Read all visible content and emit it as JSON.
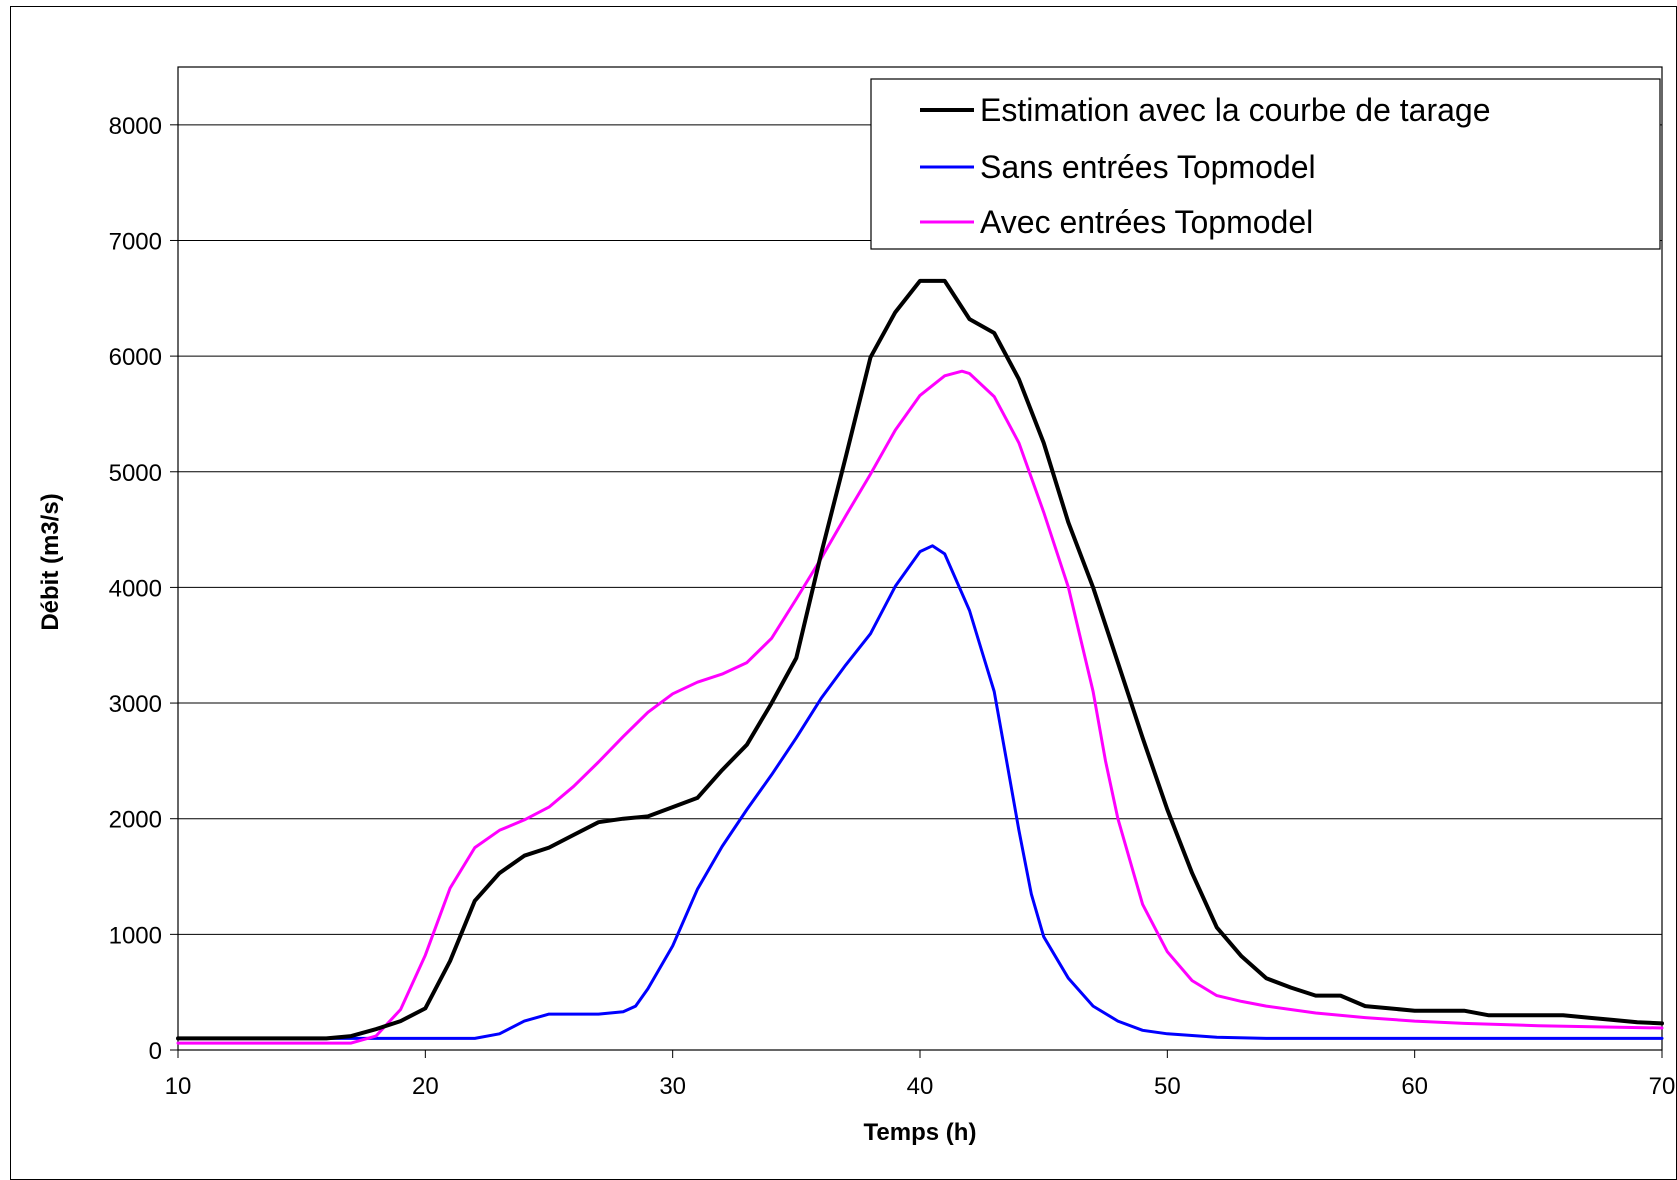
{
  "chart_data": {
    "type": "line",
    "title": "",
    "xlabel": "Temps (h)",
    "ylabel": "Débit (m3/s)",
    "xlim": [
      10,
      70
    ],
    "ylim": [
      0,
      8500
    ],
    "x_ticks": [
      10,
      20,
      30,
      40,
      50,
      60,
      70
    ],
    "y_ticks": [
      0,
      1000,
      2000,
      3000,
      4000,
      5000,
      6000,
      7000,
      8000
    ],
    "grid": "horizontal",
    "legend_position": "top-right",
    "series": [
      {
        "name": "Estimation avec la courbe de tarage",
        "color": "#000000",
        "points": [
          [
            10,
            100
          ],
          [
            14,
            100
          ],
          [
            16,
            100
          ],
          [
            17,
            120
          ],
          [
            18,
            180
          ],
          [
            19,
            250
          ],
          [
            20,
            360
          ],
          [
            21,
            770
          ],
          [
            22,
            1290
          ],
          [
            23,
            1530
          ],
          [
            24,
            1680
          ],
          [
            25,
            1750
          ],
          [
            26,
            1860
          ],
          [
            27,
            1970
          ],
          [
            28,
            2000
          ],
          [
            29,
            2020
          ],
          [
            30,
            2100
          ],
          [
            31,
            2180
          ],
          [
            32,
            2420
          ],
          [
            33,
            2640
          ],
          [
            34,
            3000
          ],
          [
            35,
            3390
          ],
          [
            36,
            4290
          ],
          [
            37,
            5130
          ],
          [
            38,
            5990
          ],
          [
            39,
            6380
          ],
          [
            40,
            6650
          ],
          [
            41,
            6650
          ],
          [
            42,
            6320
          ],
          [
            43,
            6200
          ],
          [
            44,
            5800
          ],
          [
            45,
            5250
          ],
          [
            46,
            4560
          ],
          [
            47,
            4000
          ],
          [
            48,
            3350
          ],
          [
            49,
            2700
          ],
          [
            50,
            2080
          ],
          [
            51,
            1530
          ],
          [
            52,
            1060
          ],
          [
            53,
            810
          ],
          [
            54,
            620
          ],
          [
            55,
            540
          ],
          [
            56,
            470
          ],
          [
            57,
            470
          ],
          [
            58,
            380
          ],
          [
            59,
            360
          ],
          [
            60,
            340
          ],
          [
            61,
            340
          ],
          [
            62,
            340
          ],
          [
            63,
            300
          ],
          [
            64,
            300
          ],
          [
            65,
            300
          ],
          [
            66,
            300
          ],
          [
            67,
            280
          ],
          [
            68,
            260
          ],
          [
            69,
            240
          ],
          [
            70,
            230
          ]
        ]
      },
      {
        "name": "Sans entrées Topmodel",
        "color": "#0000ff",
        "points": [
          [
            10,
            100
          ],
          [
            15,
            100
          ],
          [
            18,
            100
          ],
          [
            20,
            100
          ],
          [
            22,
            100
          ],
          [
            23,
            140
          ],
          [
            24,
            250
          ],
          [
            25,
            310
          ],
          [
            26,
            310
          ],
          [
            27,
            310
          ],
          [
            28,
            330
          ],
          [
            28.5,
            380
          ],
          [
            29,
            530
          ],
          [
            30,
            900
          ],
          [
            31,
            1390
          ],
          [
            32,
            1760
          ],
          [
            33,
            2080
          ],
          [
            34,
            2380
          ],
          [
            35,
            2700
          ],
          [
            36,
            3040
          ],
          [
            37,
            3330
          ],
          [
            38,
            3600
          ],
          [
            39,
            4010
          ],
          [
            40,
            4310
          ],
          [
            40.5,
            4360
          ],
          [
            41,
            4290
          ],
          [
            42,
            3800
          ],
          [
            42.5,
            3450
          ],
          [
            43,
            3100
          ],
          [
            43.5,
            2500
          ],
          [
            44,
            1900
          ],
          [
            44.5,
            1350
          ],
          [
            45,
            980
          ],
          [
            46,
            620
          ],
          [
            47,
            380
          ],
          [
            48,
            250
          ],
          [
            49,
            170
          ],
          [
            50,
            140
          ],
          [
            52,
            110
          ],
          [
            54,
            100
          ],
          [
            60,
            100
          ],
          [
            70,
            100
          ]
        ]
      },
      {
        "name": "Avec entrées Topmodel",
        "color": "#ff00ff",
        "points": [
          [
            10,
            60
          ],
          [
            15,
            60
          ],
          [
            17,
            60
          ],
          [
            18,
            120
          ],
          [
            19,
            350
          ],
          [
            20,
            820
          ],
          [
            21,
            1400
          ],
          [
            22,
            1750
          ],
          [
            23,
            1900
          ],
          [
            24,
            1990
          ],
          [
            25,
            2100
          ],
          [
            26,
            2280
          ],
          [
            27,
            2490
          ],
          [
            28,
            2710
          ],
          [
            29,
            2920
          ],
          [
            30,
            3080
          ],
          [
            31,
            3180
          ],
          [
            32,
            3250
          ],
          [
            33,
            3350
          ],
          [
            34,
            3560
          ],
          [
            35,
            3900
          ],
          [
            36,
            4250
          ],
          [
            37,
            4620
          ],
          [
            38,
            4980
          ],
          [
            39,
            5360
          ],
          [
            40,
            5660
          ],
          [
            41,
            5830
          ],
          [
            41.7,
            5870
          ],
          [
            42,
            5850
          ],
          [
            43,
            5650
          ],
          [
            44,
            5250
          ],
          [
            45,
            4650
          ],
          [
            46,
            4000
          ],
          [
            47,
            3100
          ],
          [
            47.5,
            2500
          ],
          [
            48,
            2000
          ],
          [
            49,
            1260
          ],
          [
            50,
            850
          ],
          [
            51,
            600
          ],
          [
            52,
            470
          ],
          [
            53,
            420
          ],
          [
            54,
            380
          ],
          [
            56,
            320
          ],
          [
            58,
            280
          ],
          [
            60,
            250
          ],
          [
            62,
            230
          ],
          [
            65,
            210
          ],
          [
            70,
            190
          ]
        ]
      }
    ]
  }
}
